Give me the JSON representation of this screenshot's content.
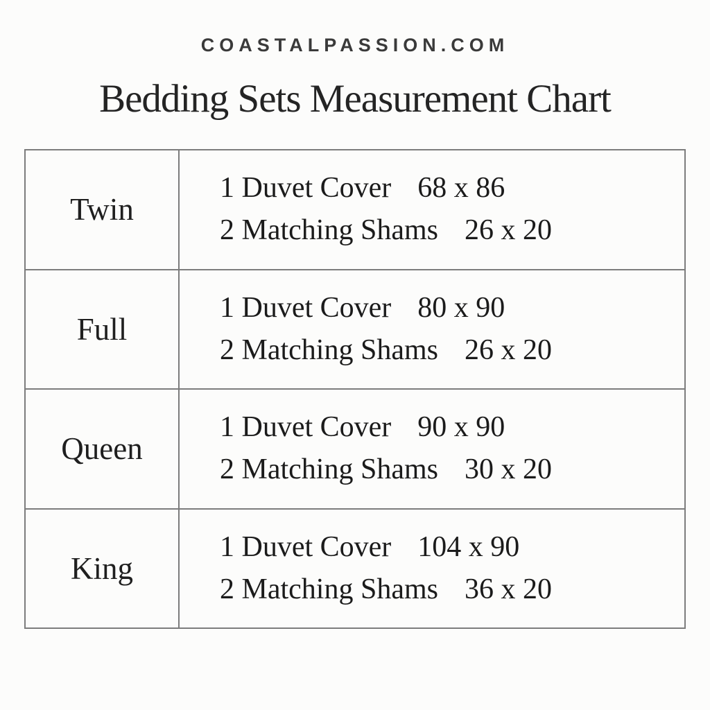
{
  "header": {
    "site_name": "COASTALPASSION.COM",
    "title": "Bedding Sets Measurement Chart"
  },
  "table": {
    "rows": [
      {
        "size_name": "Twin",
        "lines": [
          {
            "item": "1 Duvet Cover",
            "dimensions": "68 x 86"
          },
          {
            "item": "2 Matching Shams",
            "dimensions": "26 x 20"
          }
        ]
      },
      {
        "size_name": "Full",
        "lines": [
          {
            "item": "1 Duvet Cover",
            "dimensions": "80 x 90"
          },
          {
            "item": "2 Matching Shams",
            "dimensions": "26 x 20"
          }
        ]
      },
      {
        "size_name": "Queen",
        "lines": [
          {
            "item": "1 Duvet Cover",
            "dimensions": "90 x 90"
          },
          {
            "item": "2 Matching Shams",
            "dimensions": "30 x 20"
          }
        ]
      },
      {
        "size_name": "King",
        "lines": [
          {
            "item": "1 Duvet Cover",
            "dimensions": "104 x 90"
          },
          {
            "item": "2 Matching Shams",
            "dimensions": "36 x 20"
          }
        ]
      }
    ]
  },
  "colors": {
    "background": "#fcfcfb",
    "border": "#7c7c7c",
    "text": "#1f1f1f"
  },
  "chart_data": {
    "type": "table",
    "title": "Bedding Sets Measurement Chart",
    "source": "COASTALPASSION.COM",
    "rows": [
      {
        "size": "Twin",
        "duvet_cover_inches": "68 x 86",
        "matching_shams_count": 2,
        "matching_shams_inches": "26 x 20"
      },
      {
        "size": "Full",
        "duvet_cover_inches": "80 x 90",
        "matching_shams_count": 2,
        "matching_shams_inches": "26 x 20"
      },
      {
        "size": "Queen",
        "duvet_cover_inches": "90 x 90",
        "matching_shams_count": 2,
        "matching_shams_inches": "30 x 20"
      },
      {
        "size": "King",
        "duvet_cover_inches": "104 x 90",
        "matching_shams_count": 2,
        "matching_shams_inches": "36 x 20"
      }
    ]
  }
}
